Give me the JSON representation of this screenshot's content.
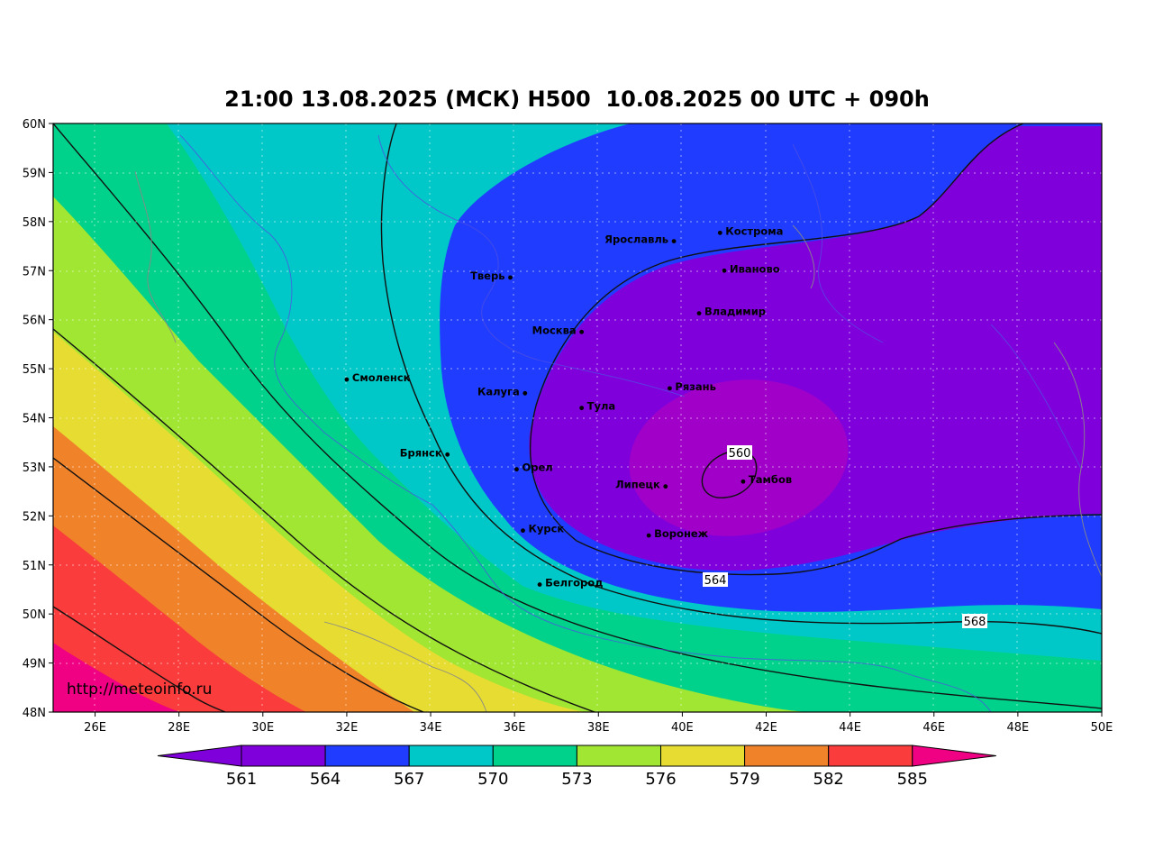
{
  "title": "21:00 13.08.2025 (МСК) H500  10.08.2025 00 UTC + 090h",
  "watermark": "http://meteoinfo.ru",
  "lat_ticks": [
    "60N",
    "59N",
    "58N",
    "57N",
    "56N",
    "55N",
    "54N",
    "53N",
    "52N",
    "51N",
    "50N",
    "49N",
    "48N"
  ],
  "lon_ticks": [
    "26E",
    "28E",
    "30E",
    "32E",
    "34E",
    "36E",
    "38E",
    "40E",
    "42E",
    "44E",
    "46E",
    "48E",
    "50E"
  ],
  "colorbar": {
    "labels": [
      "561",
      "564",
      "567",
      "570",
      "573",
      "576",
      "579",
      "582",
      "585"
    ],
    "colors": [
      "#8000dc",
      "#1f3cff",
      "#00c8c8",
      "#00d28c",
      "#a0e632",
      "#e6dc32",
      "#f0822a",
      "#fa3c3c",
      "#f00082"
    ]
  },
  "contour_labels": [
    "560",
    "564",
    "568"
  ],
  "cities": [
    {
      "name": "Кострома",
      "lon": 40.9,
      "lat": 57.77
    },
    {
      "name": "Ярославль",
      "lon": 39.8,
      "lat": 57.6
    },
    {
      "name": "Иваново",
      "lon": 41.0,
      "lat": 57.0
    },
    {
      "name": "Тверь",
      "lon": 35.9,
      "lat": 56.86
    },
    {
      "name": "Владимир",
      "lon": 40.4,
      "lat": 56.13
    },
    {
      "name": "Москва",
      "lon": 37.6,
      "lat": 55.75
    },
    {
      "name": "Смоленск",
      "lon": 32.0,
      "lat": 54.78
    },
    {
      "name": "Калуга",
      "lon": 36.25,
      "lat": 54.5
    },
    {
      "name": "Рязань",
      "lon": 39.7,
      "lat": 54.6
    },
    {
      "name": "Тула",
      "lon": 37.6,
      "lat": 54.2
    },
    {
      "name": "Брянск",
      "lon": 34.4,
      "lat": 53.25
    },
    {
      "name": "Орел",
      "lon": 36.05,
      "lat": 52.95
    },
    {
      "name": "Тамбов",
      "lon": 41.45,
      "lat": 52.7
    },
    {
      "name": "Липецк",
      "lon": 39.6,
      "lat": 52.6
    },
    {
      "name": "Курск",
      "lon": 36.2,
      "lat": 51.7
    },
    {
      "name": "Воронеж",
      "lon": 39.2,
      "lat": 51.6
    },
    {
      "name": "Белгород",
      "lon": 36.6,
      "lat": 50.6
    }
  ]
}
